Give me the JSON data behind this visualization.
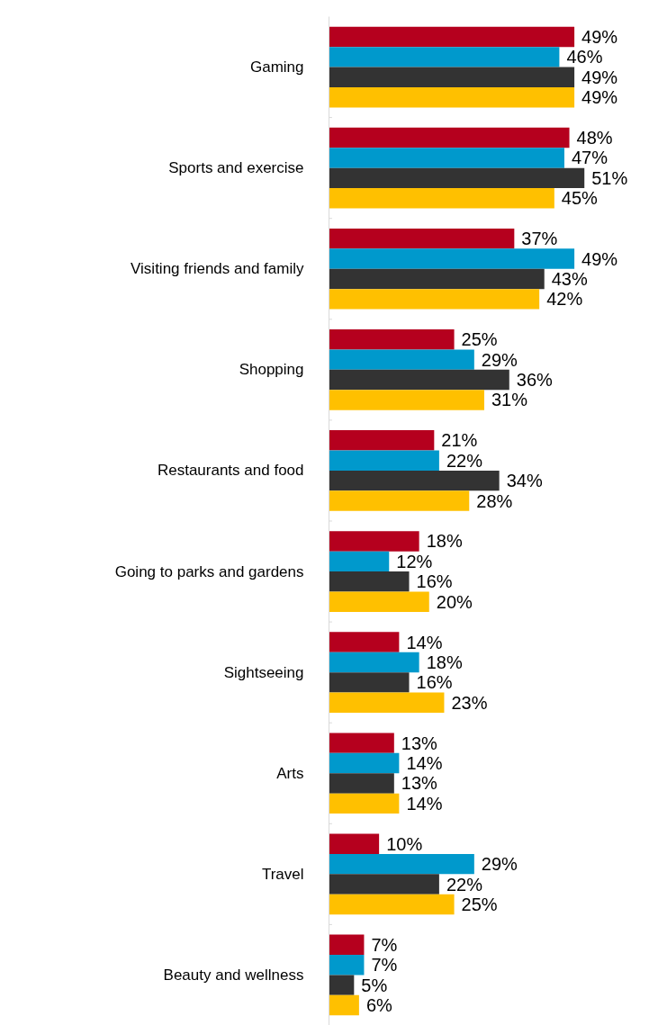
{
  "chart_data": {
    "type": "bar",
    "orientation": "horizontal",
    "categories": [
      "Gaming",
      "Sports and exercise",
      "Visiting friends and family",
      "Shopping",
      "Restaurants and food",
      "Going to parks and gardens",
      "Sightseeing",
      "Arts",
      "Travel",
      "Beauty and wellness"
    ],
    "series": [
      {
        "color": "#b5001e",
        "values": [
          49,
          48,
          37,
          25,
          21,
          18,
          14,
          13,
          10,
          7
        ],
        "value_labels": [
          "49%",
          "48%",
          "37%",
          "25%",
          "21%",
          "18%",
          "14%",
          "13%",
          "10%",
          "7%"
        ]
      },
      {
        "color": "#0099cc",
        "values": [
          46,
          47,
          49,
          29,
          22,
          12,
          18,
          14,
          29,
          7
        ],
        "value_labels": [
          "46%",
          "47%",
          "49%",
          "29%",
          "22%",
          "12%",
          "18%",
          "14%",
          "29%",
          "7%"
        ]
      },
      {
        "color": "#333333",
        "values": [
          49,
          51,
          43,
          36,
          34,
          16,
          16,
          13,
          22,
          5
        ],
        "value_labels": [
          "49%",
          "51%",
          "43%",
          "36%",
          "34%",
          "16%",
          "16%",
          "13%",
          "22%",
          "5%"
        ]
      },
      {
        "color": "#ffc000",
        "values": [
          49,
          45,
          42,
          31,
          28,
          20,
          23,
          14,
          25,
          6
        ],
        "value_labels": [
          "49%",
          "45%",
          "42%",
          "31%",
          "28%",
          "20%",
          "23%",
          "14%",
          "25%",
          "6%"
        ]
      }
    ],
    "grid": false
  }
}
